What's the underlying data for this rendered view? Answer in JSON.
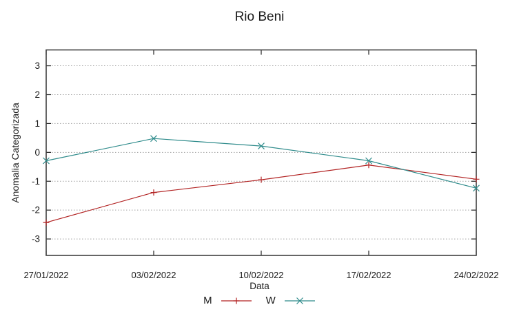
{
  "chart_data": {
    "type": "line",
    "title": "Rio Beni",
    "xlabel": "Data",
    "ylabel": "Anomalia Categorizada",
    "categories": [
      "27/01/2022",
      "03/02/2022",
      "10/02/2022",
      "17/02/2022",
      "24/02/2022"
    ],
    "yticks": [
      3,
      2,
      1,
      0,
      -1,
      -2,
      -3
    ],
    "ylim": [
      -3.57,
      3.55
    ],
    "grid": "horizontal-dotted",
    "legend_position": "bottom-center",
    "axis_color": "#404040",
    "grid_color": "#a0a0a0",
    "series": [
      {
        "name": "M",
        "color": "#b22222",
        "marker": "plus",
        "values": [
          -2.43,
          -1.39,
          -0.95,
          -0.44,
          -0.93
        ]
      },
      {
        "name": "W",
        "color": "#2e8b8b",
        "marker": "cross",
        "values": [
          -0.29,
          0.48,
          0.22,
          -0.29,
          -1.24
        ]
      }
    ]
  }
}
